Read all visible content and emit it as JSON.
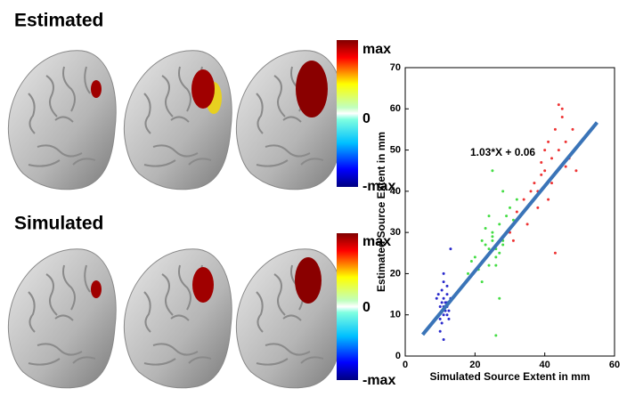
{
  "panels": {
    "estimated": "Estimated",
    "simulated": "Simulated"
  },
  "colorbars": [
    {
      "max": "max",
      "zero": "0",
      "min": "-max"
    },
    {
      "max": "max",
      "zero": "0",
      "min": "-max"
    }
  ],
  "chart_data": {
    "type": "scatter",
    "xlabel": "Simulated Source Extent in mm",
    "ylabel": "Estimated Source Extent in mm",
    "annotation": "1.03*X + 0.06",
    "xlim": [
      0,
      60
    ],
    "xticks": [
      0,
      20,
      40,
      60
    ],
    "ylim": [
      0,
      70
    ],
    "yticks": [
      0,
      10,
      20,
      30,
      40,
      50,
      60,
      70
    ],
    "series": [
      {
        "color": "#2a2acc",
        "x": [
          10,
          11,
          12,
          10.5,
          11.5,
          12.5,
          9.5,
          10,
          11,
          12,
          13,
          10.5,
          11,
          12,
          11.5,
          10,
          12,
          13,
          11,
          10.5,
          12,
          11,
          9,
          12.5,
          11
        ],
        "values": [
          12,
          14,
          10,
          16,
          13,
          11,
          15,
          9,
          18,
          12,
          14,
          8,
          20,
          13,
          11,
          6,
          15,
          26,
          10,
          13,
          17,
          12,
          14,
          9,
          4
        ]
      },
      {
        "color": "#44dd44",
        "x": [
          18,
          20,
          22,
          24,
          25,
          26,
          27,
          28,
          22,
          24,
          26,
          30,
          23,
          25,
          27,
          29,
          21,
          26,
          28,
          31,
          24,
          19,
          25,
          27,
          32,
          23,
          26,
          28,
          29,
          25
        ],
        "values": [
          20,
          24,
          28,
          22,
          30,
          26,
          32,
          28,
          18,
          34,
          24,
          36,
          27,
          29,
          25,
          30,
          21,
          5,
          40,
          33,
          26,
          23,
          45,
          14,
          38,
          31,
          22,
          27,
          34,
          28
        ]
      },
      {
        "color": "#ee3333",
        "x": [
          30,
          32,
          34,
          36,
          38,
          40,
          42,
          44,
          46,
          48,
          35,
          37,
          39,
          41,
          43,
          45,
          47,
          33,
          40,
          42,
          44,
          46,
          38,
          36,
          49,
          41,
          43,
          45,
          31,
          39
        ],
        "values": [
          30,
          35,
          38,
          40,
          36,
          45,
          48,
          50,
          52,
          55,
          32,
          42,
          44,
          38,
          55,
          58,
          48,
          34,
          50,
          42,
          61,
          46,
          40,
          37,
          45,
          52,
          25,
          60,
          28,
          47
        ]
      }
    ],
    "fit": {
      "color": "#3a74b8",
      "x": [
        5,
        55
      ],
      "values": [
        5.2,
        56.7
      ]
    }
  }
}
